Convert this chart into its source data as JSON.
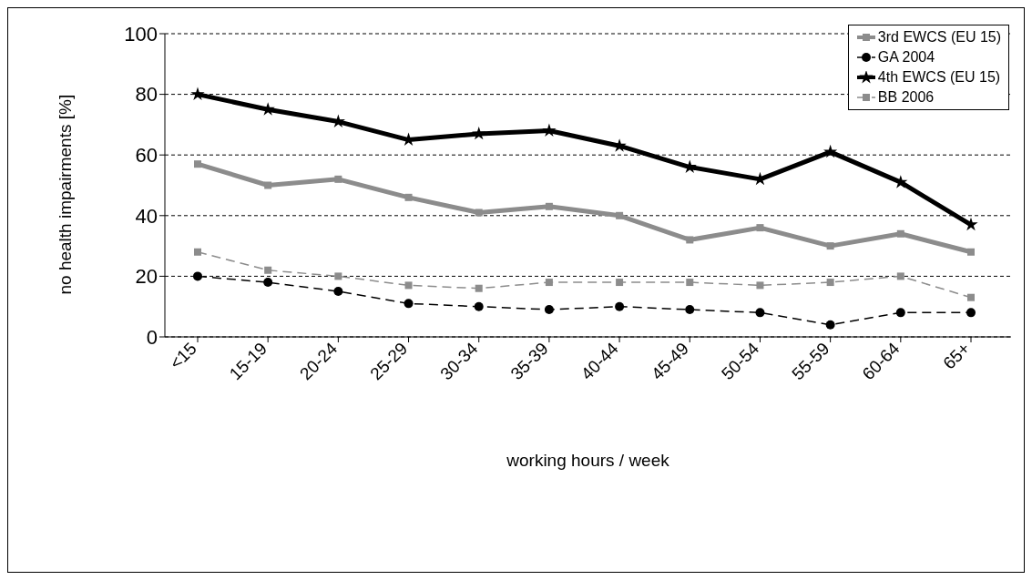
{
  "chart_data": {
    "type": "line",
    "xlabel": "working hours / week",
    "ylabel": "no health impairments [%]",
    "categories": [
      "<15",
      "15-19",
      "20-24",
      "25-29",
      "30-34",
      "35-39",
      "40-44",
      "45-49",
      "50-54",
      "55-59",
      "60-64",
      "65+"
    ],
    "series": [
      {
        "name": "3rd EWCS (EU 15)",
        "color": "#8c8c8c",
        "marker": "square",
        "line_style": "solid",
        "values": [
          57,
          50,
          52,
          46,
          41,
          43,
          40,
          32,
          36,
          30,
          34,
          28
        ]
      },
      {
        "name": "GA 2004",
        "color": "#000000",
        "marker": "circle",
        "line_style": "dashed",
        "values": [
          20,
          18,
          15,
          11,
          10,
          9,
          10,
          9,
          8,
          4,
          8,
          8
        ]
      },
      {
        "name": "4th EWCS (EU 15)",
        "color": "#000000",
        "marker": "star",
        "line_style": "solid",
        "values": [
          80,
          75,
          71,
          65,
          67,
          68,
          63,
          56,
          52,
          61,
          51,
          37
        ]
      },
      {
        "name": "BB 2006",
        "color": "#8c8c8c",
        "marker": "square",
        "line_style": "dashed",
        "values": [
          28,
          22,
          20,
          17,
          16,
          18,
          18,
          18,
          17,
          18,
          20,
          13
        ]
      }
    ],
    "ylim": [
      0,
      100
    ],
    "yticks": [
      0,
      20,
      40,
      60,
      80,
      100
    ],
    "grid": "y",
    "legend": "top right"
  }
}
